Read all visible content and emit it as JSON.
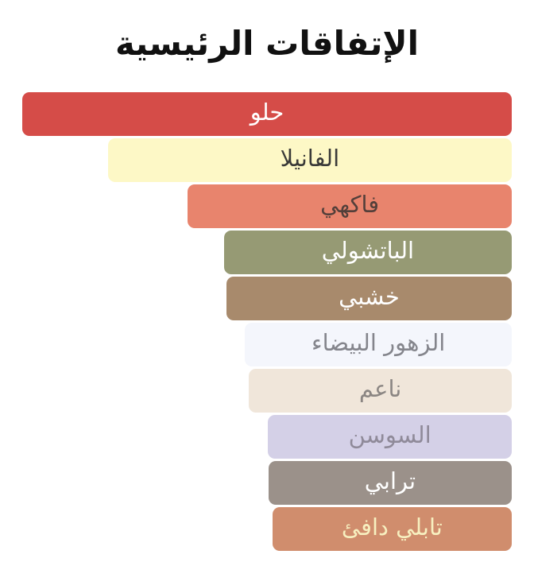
{
  "title": "الإتفاقات الرئيسية",
  "chart_data": {
    "type": "bar",
    "orientation": "horizontal",
    "title": "الإتفاقات الرئيسية",
    "value_unit": "percent_of_max_width",
    "axis": "none",
    "grid": false,
    "legend": "none",
    "categories": [
      "حلو",
      "الفانيلا",
      "فاكهي",
      "الباتشولي",
      "خشبي",
      "الزهور البيضاء",
      "ناعم",
      "السوسن",
      "ترابي",
      "تابلي دافئ"
    ],
    "values": [
      100,
      82.5,
      66.2,
      58.8,
      58.3,
      54.5,
      53.7,
      49.8,
      49.7,
      48.9
    ],
    "bars": [
      {
        "label": "حلو",
        "value": 100,
        "color": "#d54c48",
        "text_color": "#ffffff"
      },
      {
        "label": "الفانيلا",
        "value": 82.5,
        "color": "#fdf8c6",
        "text_color": "#3a3a38"
      },
      {
        "label": "فاكهي",
        "value": 66.2,
        "color": "#e8846d",
        "text_color": "#533f3a"
      },
      {
        "label": "الباتشولي",
        "value": 58.8,
        "color": "#969a74",
        "text_color": "#ffffff"
      },
      {
        "label": "خشبي",
        "value": 58.3,
        "color": "#a88a6c",
        "text_color": "#ffffff"
      },
      {
        "label": "الزهور البيضاء",
        "value": 54.5,
        "color": "#f4f6fc",
        "text_color": "#84858c"
      },
      {
        "label": "ناعم",
        "value": 53.7,
        "color": "#f0e6da",
        "text_color": "#8b8683"
      },
      {
        "label": "السوسن",
        "value": 49.8,
        "color": "#d4d0e7",
        "text_color": "#8f8a99"
      },
      {
        "label": "ترابي",
        "value": 49.7,
        "color": "#9b918a",
        "text_color": "#ffffff"
      },
      {
        "label": "تابلي دافئ",
        "value": 48.9,
        "color": "#d08d6d",
        "text_color": "#f7f0c0"
      }
    ]
  }
}
